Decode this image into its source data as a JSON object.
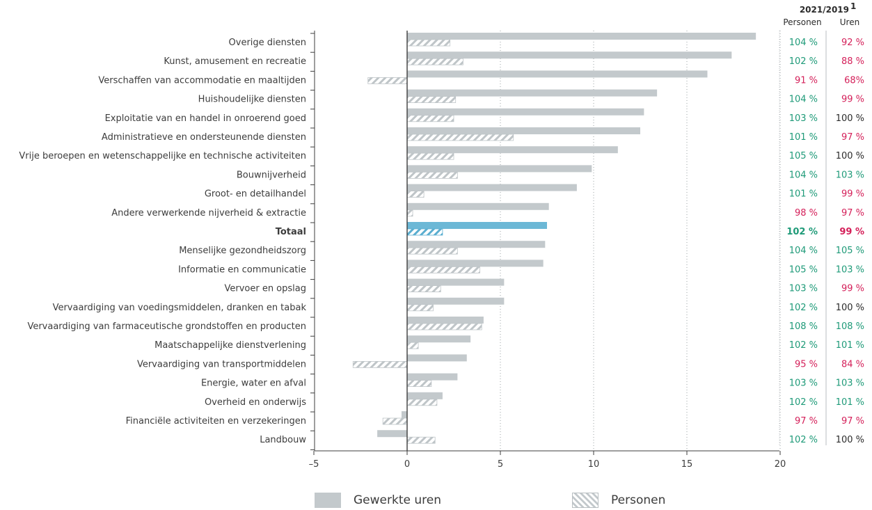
{
  "chart_data": {
    "type": "bar",
    "orientation": "horizontal",
    "xlim": [
      -5,
      20
    ],
    "x_ticks": [
      "-5",
      "0",
      "5",
      "10",
      "15",
      "20"
    ],
    "categories": [
      "Overige diensten",
      "Kunst, amusement en recreatie",
      "Verschaffen van accommodatie en maaltijden",
      "Huishoudelijke diensten",
      "Exploitatie van en handel in onroerend goed",
      "Administratieve en ondersteunende diensten",
      "Vrije beroepen en wetenschappelijke en technische activiteiten",
      "Bouwnijverheid",
      "Groot- en detailhandel",
      "Andere verwerkende nijverheid & extractie",
      "Totaal",
      "Menselijke gezondheidszorg",
      "Informatie en communicatie",
      "Vervoer en opslag",
      "Vervaardiging van voedingsmiddelen, dranken en tabak",
      "Vervaardiging van farmaceutische grondstoffen en producten",
      "Maatschappelijke dienstverlening",
      "Vervaardiging van transportmiddelen",
      "Energie, water en afval",
      "Overheid en onderwijs",
      "Financiële activiteiten en verzekeringen",
      "Landbouw"
    ],
    "highlight_category": "Totaal",
    "series": [
      {
        "name": "Gewerkte uren",
        "pattern": "solid",
        "values": [
          18.7,
          17.4,
          16.1,
          13.4,
          12.7,
          12.5,
          11.3,
          9.9,
          9.1,
          7.6,
          7.5,
          7.4,
          7.3,
          5.2,
          5.2,
          4.1,
          3.4,
          3.2,
          2.7,
          1.9,
          -0.3,
          -1.6
        ]
      },
      {
        "name": "Personen",
        "pattern": "hatched",
        "values": [
          2.3,
          3.0,
          -2.1,
          2.6,
          2.5,
          5.7,
          2.5,
          2.7,
          0.9,
          0.3,
          1.9,
          2.7,
          3.9,
          1.8,
          1.4,
          4.0,
          0.6,
          -2.9,
          1.3,
          1.6,
          -1.3,
          1.5
        ]
      }
    ],
    "table": {
      "header": "2021/2019",
      "header_sup": "1",
      "columns": [
        "Personen",
        "Uren"
      ],
      "personen": [
        "104 %",
        "102 %",
        "91 %",
        "104 %",
        "103 %",
        "101 %",
        "105 %",
        "104 %",
        "101 %",
        "98 %",
        "102 %",
        "104 %",
        "105 %",
        "103 %",
        "102 %",
        "108 %",
        "102 %",
        "95 %",
        "103 %",
        "102 %",
        "97 %",
        "102 %"
      ],
      "uren": [
        "92 %",
        "88 %",
        "68%",
        "99 %",
        "100 %",
        "97 %",
        "100 %",
        "103 %",
        "99 %",
        "97 %",
        "99 %",
        "105 %",
        "103 %",
        "99 %",
        "100 %",
        "108 %",
        "101 %",
        "84 %",
        "103 %",
        "101 %",
        "97 %",
        "100 %"
      ]
    },
    "grid": "dotted vertical",
    "legend_position": "bottom"
  },
  "colors": {
    "bar": "#c3c9cc",
    "bar_highlight": "#6cb8d6",
    "hatch_line": "#bfc5c8",
    "hatch_highlight": "#5aaed0",
    "positive": "#1e9a78",
    "negative": "#d41f59",
    "neutral": "#2b2b2b",
    "axis": "#3c3c3c"
  },
  "legend": {
    "hours_label": "Gewerkte uren",
    "persons_label": "Personen"
  }
}
